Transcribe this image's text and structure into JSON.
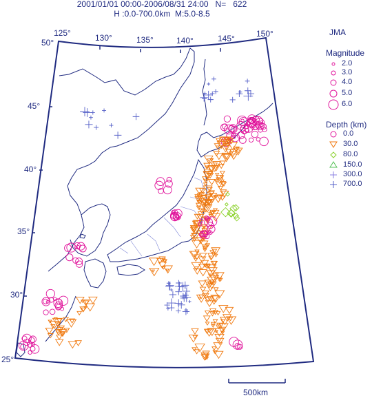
{
  "header": {
    "line1": "2001/01/01 00:00-2006/08/31 24:00   N=   622",
    "line2": "H :0.0-700.0km  M:5.0-8.5"
  },
  "agency": "JMA",
  "lon_ticks": [
    "125",
    "130",
    "135",
    "140",
    "145",
    "150"
  ],
  "lat_ticks": [
    "50",
    "45",
    "40",
    "35",
    "30",
    "25"
  ],
  "degree_symbol": "°",
  "magnitude_legend": {
    "title": "Magnitude",
    "items": [
      "2.0",
      "3.0",
      "4.0",
      "5.0",
      "6.0"
    ]
  },
  "depth_legend": {
    "title": "Depth (km)",
    "items": [
      {
        "label": "0.0",
        "symbol": "circle",
        "color": "#e0119a"
      },
      {
        "label": "30.0",
        "symbol": "triangle-down",
        "color": "#f07a10"
      },
      {
        "label": "80.0",
        "symbol": "diamond",
        "color": "#8ad12a"
      },
      {
        "label": "150.0",
        "symbol": "triangle-up",
        "color": "#55c257"
      },
      {
        "label": "300.0",
        "symbol": "plus",
        "color": "#8a7fe0"
      },
      {
        "label": "700.0",
        "symbol": "plus",
        "color": "#5560c8"
      }
    ]
  },
  "scale_bar": {
    "label": "500km"
  },
  "colors": {
    "frame": "#1f2a80",
    "coast": "#1f2a80",
    "prefecture": "#7a83d6",
    "shallow": "#e0119a",
    "mid": "#f07a10",
    "inter": "#8ad12a",
    "deep": "#5560c8"
  }
}
